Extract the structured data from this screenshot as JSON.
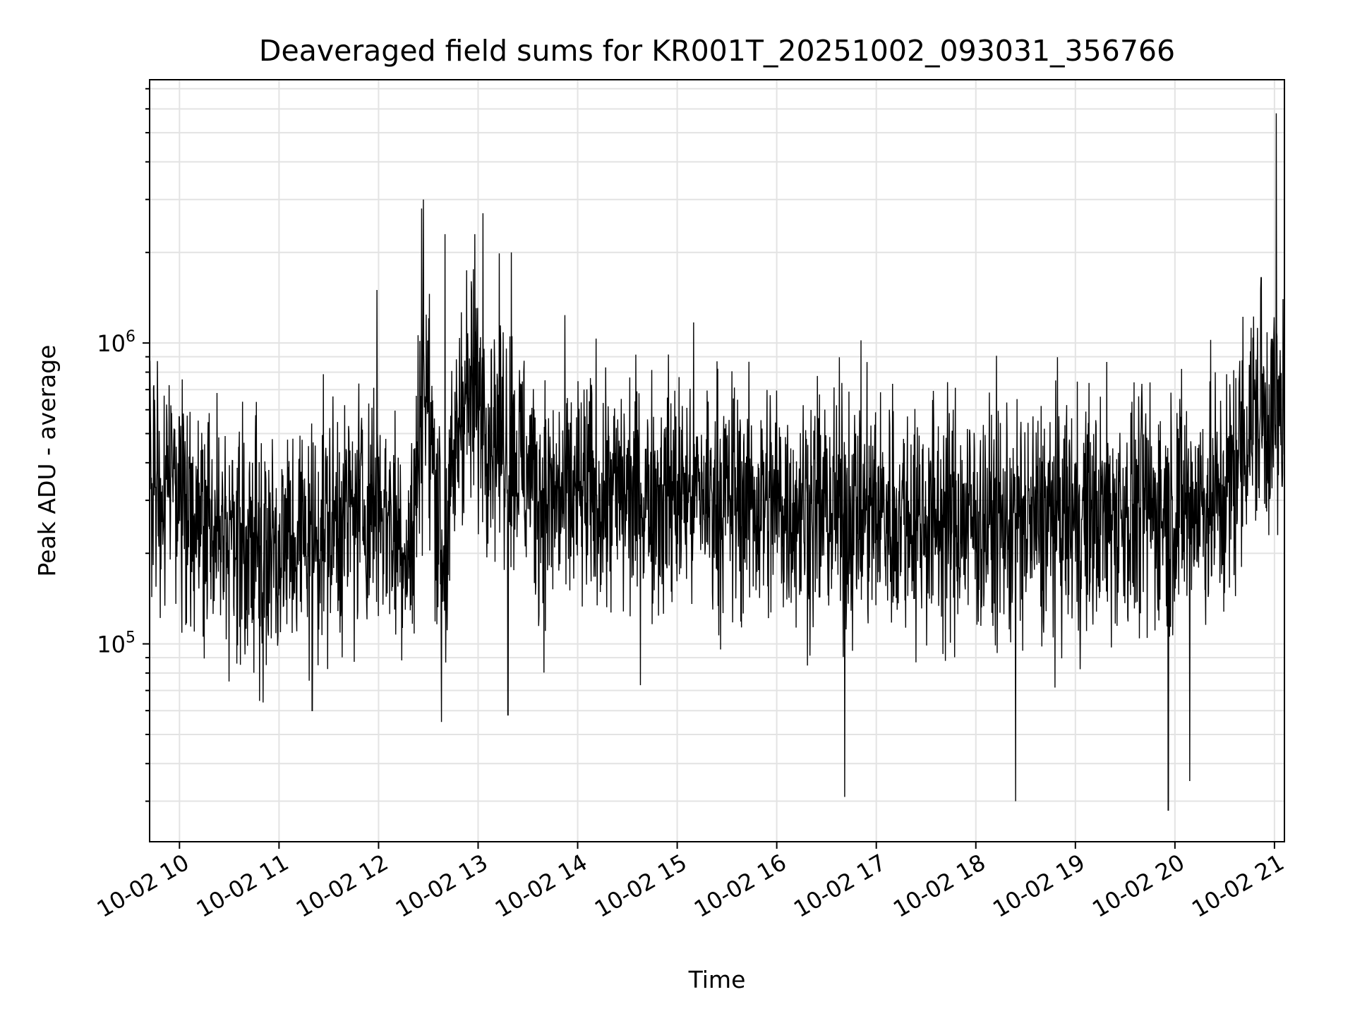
{
  "chart_data": {
    "type": "line",
    "title": "Deaveraged field sums for KR001T_20251002_093031_356766",
    "xlabel": "Time",
    "ylabel": "Peak ADU - average",
    "yscale": "log",
    "grid": true,
    "x_tick_labels": [
      "10-02 10",
      "10-02 11",
      "10-02 12",
      "10-02 13",
      "10-02 14",
      "10-02 15",
      "10-02 16",
      "10-02 17",
      "10-02 18",
      "10-02 19",
      "10-02 20",
      "10-02 21"
    ],
    "x_ticks": [
      "2025-10-02 10:00",
      "2025-10-02 11:00",
      "2025-10-02 12:00",
      "2025-10-02 13:00",
      "2025-10-02 14:00",
      "2025-10-02 15:00",
      "2025-10-02 16:00",
      "2025-10-02 17:00",
      "2025-10-02 18:00",
      "2025-10-02 19:00",
      "2025-10-02 20:00",
      "2025-10-02 21:00"
    ],
    "y_tick_labels": [
      {
        "base": "10",
        "exp": "5"
      },
      {
        "base": "10",
        "exp": "6"
      }
    ],
    "y_ticks": [
      100000,
      1000000
    ],
    "xlim": [
      "2025-10-02 09:42",
      "2025-10-02 21:06"
    ],
    "ylim": [
      22000,
      7500000
    ],
    "series": [
      {
        "color": "#000000",
        "profile": [
          {
            "t": "2025-10-02 09:42",
            "median": 400000
          },
          {
            "t": "2025-10-02 10:15",
            "median": 230000
          },
          {
            "t": "2025-10-02 11:00",
            "median": 210000
          },
          {
            "t": "2025-10-02 11:30",
            "median": 250000
          },
          {
            "t": "2025-10-02 12:00",
            "median": 300000
          },
          {
            "t": "2025-10-02 12:20",
            "median": 200000
          },
          {
            "t": "2025-10-02 12:27",
            "median": 800000
          },
          {
            "t": "2025-10-02 12:40",
            "median": 180000
          },
          {
            "t": "2025-10-02 12:50",
            "median": 700000
          },
          {
            "t": "2025-10-02 13:15",
            "median": 500000
          },
          {
            "t": "2025-10-02 13:40",
            "median": 300000
          },
          {
            "t": "2025-10-02 15:00",
            "median": 320000
          },
          {
            "t": "2025-10-02 16:30",
            "median": 280000
          },
          {
            "t": "2025-10-02 18:30",
            "median": 250000
          },
          {
            "t": "2025-10-02 20:30",
            "median": 300000
          },
          {
            "t": "2025-10-02 20:45",
            "median": 550000
          },
          {
            "t": "2025-10-02 21:06",
            "median": 600000
          }
        ],
        "spikes": [
          {
            "t": "2025-10-02 12:26",
            "value": 2800000
          },
          {
            "t": "2025-10-02 12:27",
            "value": 3000000
          },
          {
            "t": "2025-10-02 12:38",
            "value": 55000
          },
          {
            "t": "2025-10-02 12:40",
            "value": 2300000
          },
          {
            "t": "2025-10-02 12:58",
            "value": 2300000
          },
          {
            "t": "2025-10-02 13:03",
            "value": 2700000
          },
          {
            "t": "2025-10-02 13:18",
            "value": 58000
          },
          {
            "t": "2025-10-02 13:20",
            "value": 2000000
          },
          {
            "t": "2025-10-02 11:59",
            "value": 1500000
          },
          {
            "t": "2025-10-02 11:20",
            "value": 60000
          },
          {
            "t": "2025-10-02 16:41",
            "value": 31000
          },
          {
            "t": "2025-10-02 18:24",
            "value": 30000
          },
          {
            "t": "2025-10-02 19:56",
            "value": 28000
          },
          {
            "t": "2025-10-02 20:09",
            "value": 35000
          },
          {
            "t": "2025-10-02 20:52",
            "value": 1650000
          },
          {
            "t": "2025-10-02 21:01",
            "value": 5800000
          },
          {
            "t": "2025-10-02 21:02",
            "value": 230000
          }
        ]
      }
    ]
  }
}
